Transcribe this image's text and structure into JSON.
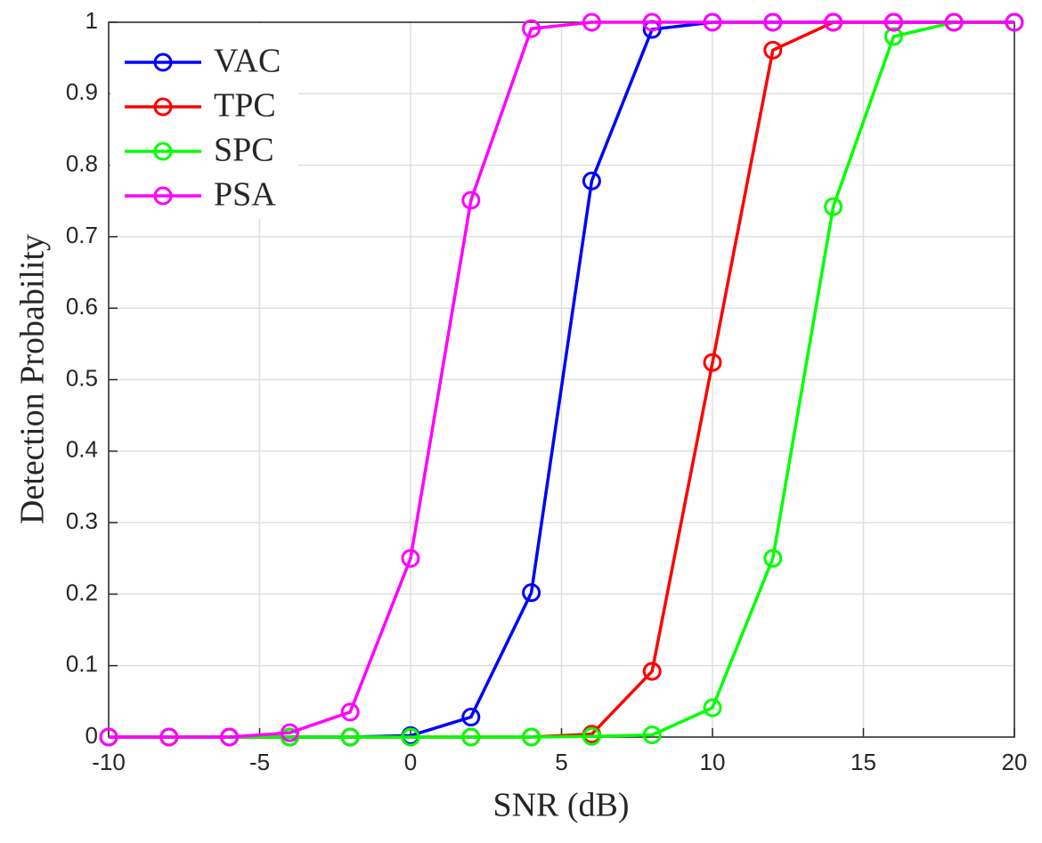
{
  "chart_data": {
    "type": "line",
    "xlabel": "SNR (dB)",
    "ylabel": "Detection Probability",
    "x": [
      -10,
      -8,
      -6,
      -4,
      -2,
      0,
      2,
      4,
      6,
      8,
      10,
      12,
      14,
      16,
      18,
      20
    ],
    "series": [
      {
        "name": "VAC",
        "color": "#0000ff",
        "values": [
          0,
          0,
          0,
          0,
          0,
          0.002,
          0.028,
          0.202,
          0.778,
          0.99,
          1,
          1,
          1,
          1,
          1,
          1
        ]
      },
      {
        "name": "TPC",
        "color": "#ff0000",
        "values": [
          0,
          0,
          0,
          0,
          0,
          0,
          0,
          0,
          0.004,
          0.092,
          0.524,
          0.961,
          1,
          1,
          1,
          1
        ]
      },
      {
        "name": "SPC",
        "color": "#00ff00",
        "values": [
          0,
          0,
          0,
          0,
          0,
          0,
          0,
          0,
          0.001,
          0.003,
          0.041,
          0.25,
          0.742,
          0.98,
          1,
          1
        ]
      },
      {
        "name": "PSA",
        "color": "#ff00ff",
        "values": [
          0,
          0,
          0,
          0.006,
          0.035,
          0.25,
          0.751,
          0.991,
          1,
          1,
          1,
          1,
          1,
          1,
          1,
          1
        ]
      }
    ],
    "xlim": [
      -10,
      20
    ],
    "xticks": [
      -10,
      -5,
      0,
      5,
      10,
      15,
      20
    ],
    "ylim": [
      0,
      1
    ],
    "yticks": [
      0,
      0.1,
      0.2,
      0.3,
      0.4,
      0.5,
      0.6,
      0.7,
      0.8,
      0.9,
      1
    ],
    "grid": true,
    "legend": "upper left"
  }
}
